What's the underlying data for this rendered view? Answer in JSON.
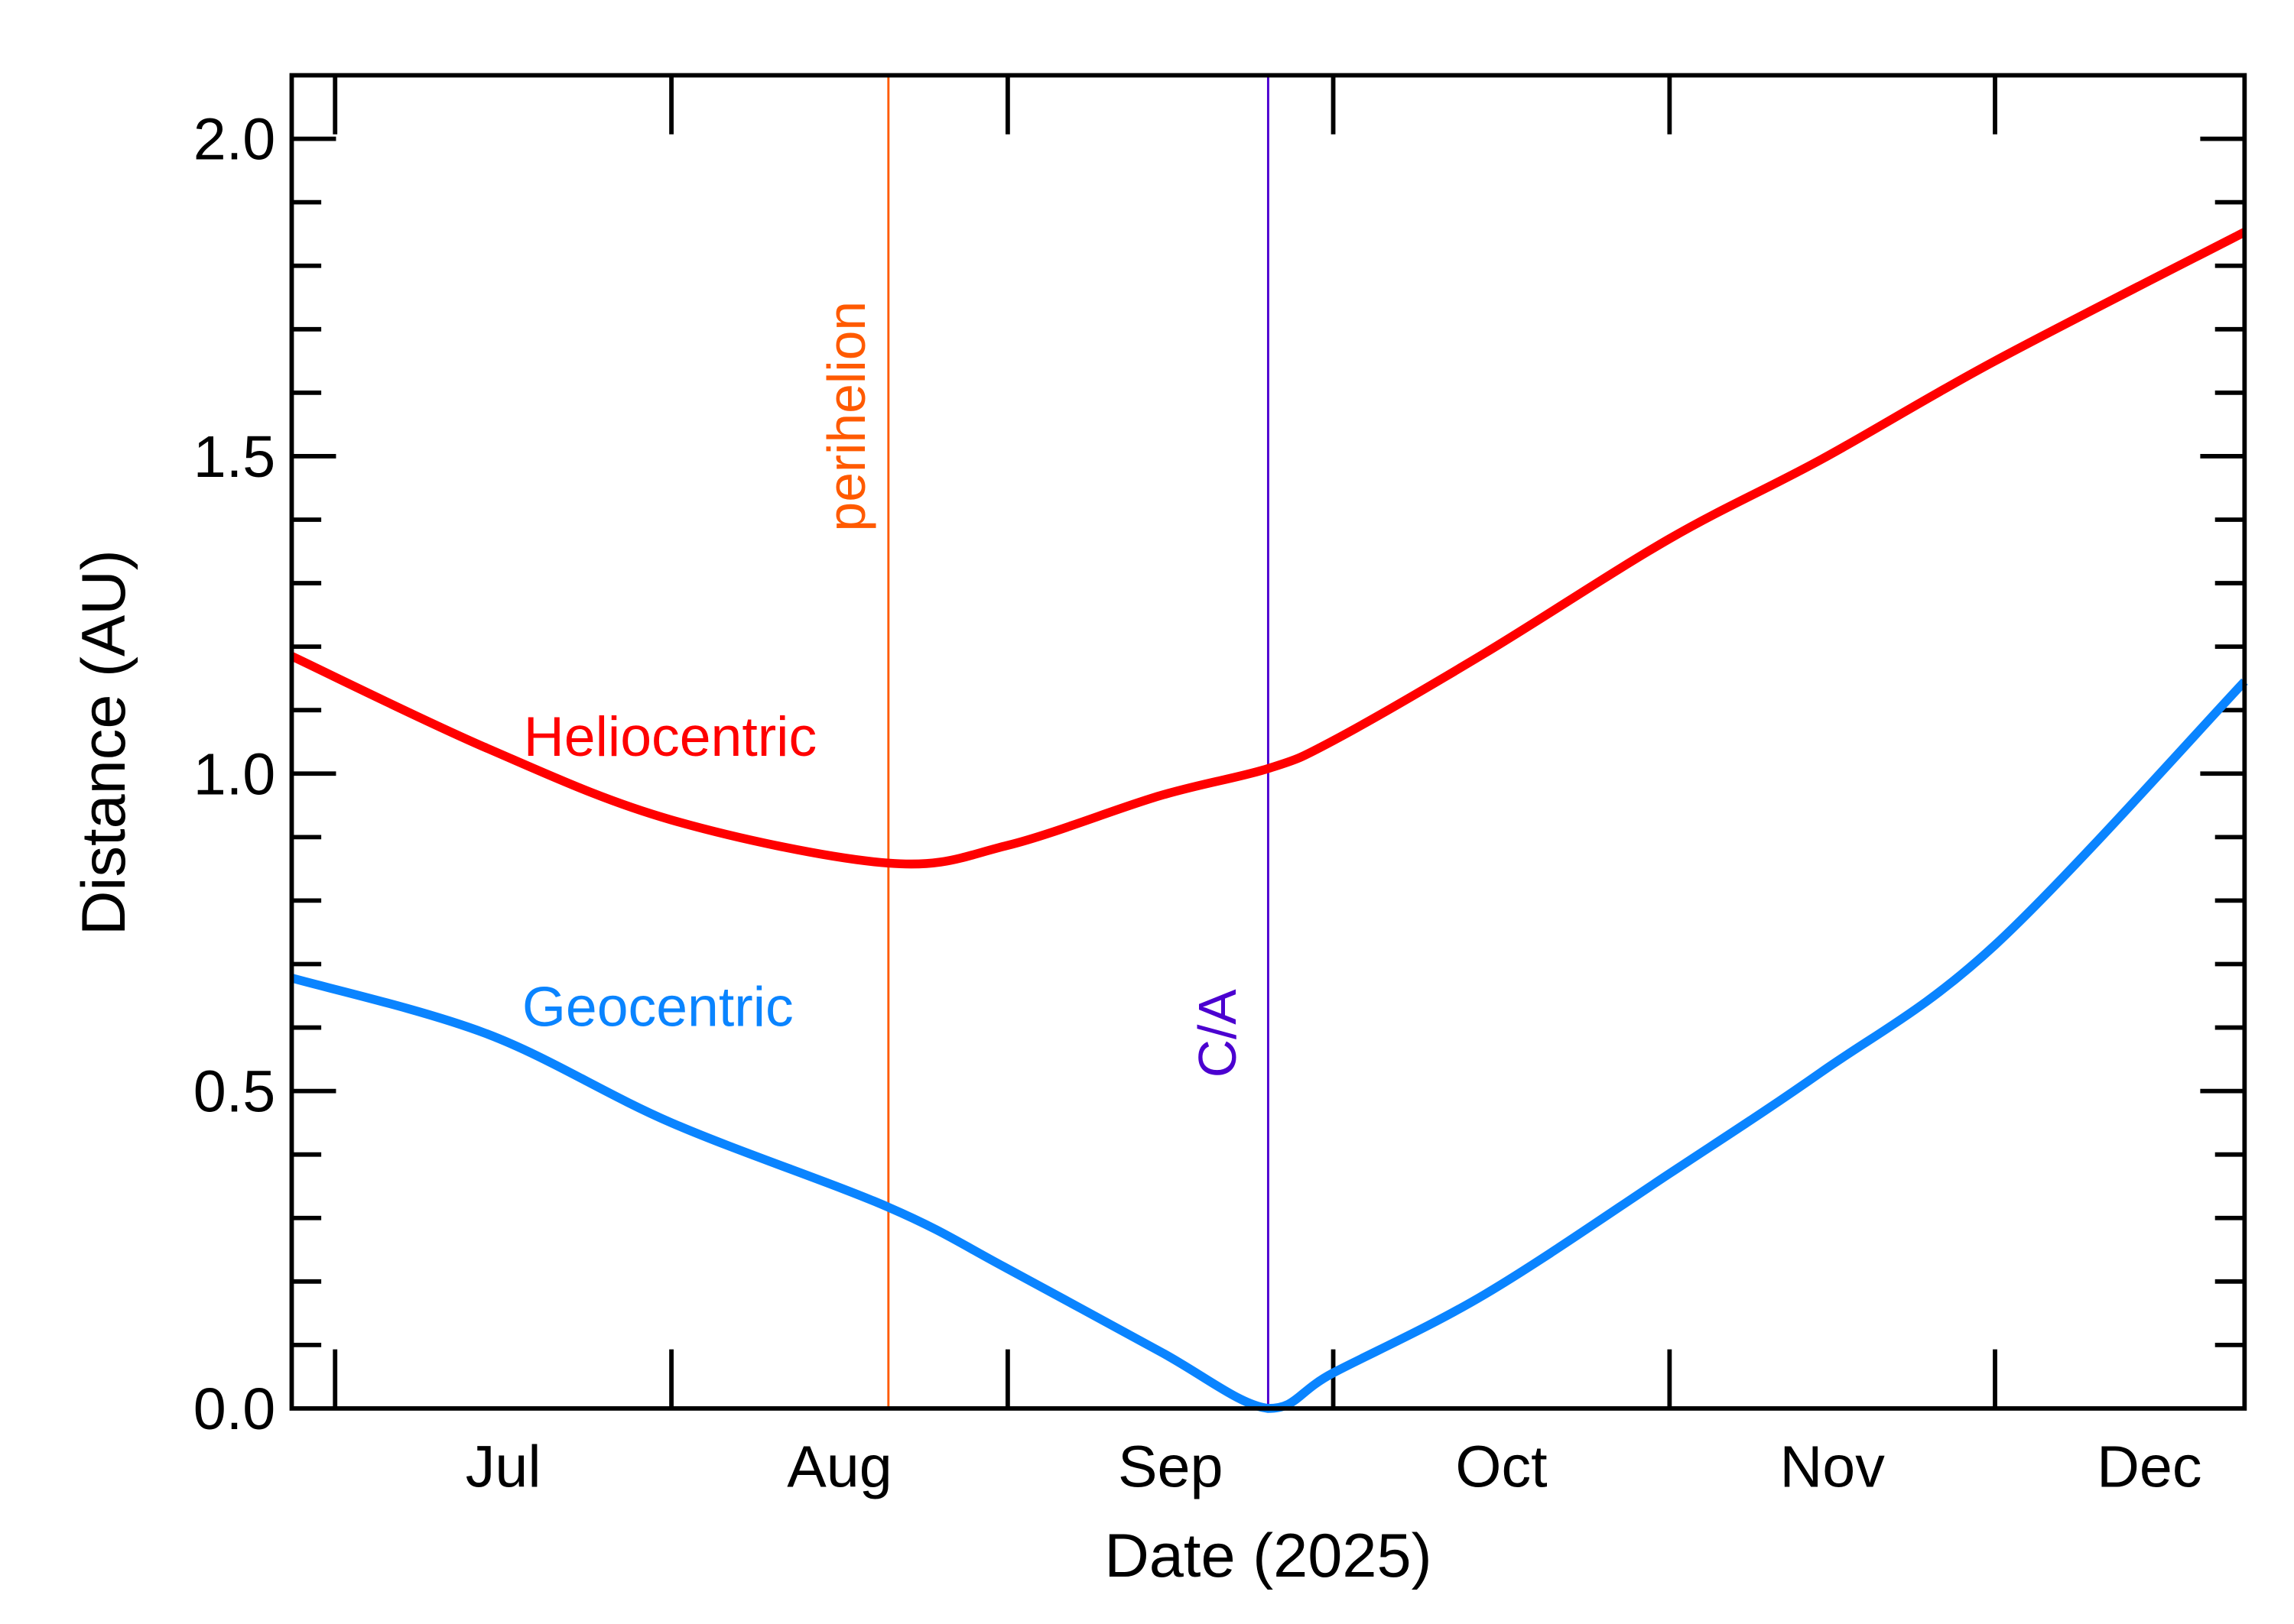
{
  "chart_data": {
    "type": "line",
    "xlabel": "Date (2025)",
    "ylabel": "Distance (AU)",
    "xlim": [
      "2025-06-27",
      "2025-12-24"
    ],
    "ylim": [
      0,
      2.1
    ],
    "x_ticks": [
      {
        "date": "2025-07-01",
        "label": "Jul"
      },
      {
        "date": "2025-08-01",
        "label": "Aug"
      },
      {
        "date": "2025-09-01",
        "label": "Sep"
      },
      {
        "date": "2025-10-01",
        "label": "Oct"
      },
      {
        "date": "2025-11-01",
        "label": "Nov"
      },
      {
        "date": "2025-12-01",
        "label": "Dec"
      }
    ],
    "y_ticks": [
      {
        "value": 0.0,
        "label": "0.0"
      },
      {
        "value": 0.5,
        "label": "0.5"
      },
      {
        "value": 1.0,
        "label": "1.0"
      },
      {
        "value": 1.5,
        "label": "1.5"
      },
      {
        "value": 2.0,
        "label": "2.0"
      }
    ],
    "grid": false,
    "x": [
      "2025-06-27",
      "2025-07-15",
      "2025-08-01",
      "2025-08-21",
      "2025-09-01",
      "2025-09-15",
      "2025-09-25",
      "2025-10-01",
      "2025-10-15",
      "2025-11-01",
      "2025-11-15",
      "2025-12-01",
      "2025-12-24"
    ],
    "series": [
      {
        "name": "Heliocentric",
        "color": "#ff0000",
        "values": [
          1.185,
          1.04,
          0.927,
          0.859,
          0.887,
          0.965,
          1.008,
          1.052,
          1.19,
          1.37,
          1.495,
          1.65,
          1.853
        ]
      },
      {
        "name": "Geocentric",
        "color": "#0a84ff",
        "values": [
          0.678,
          0.59,
          0.45,
          0.317,
          0.22,
          0.09,
          0.0,
          0.056,
          0.18,
          0.37,
          0.53,
          0.73,
          1.145
        ]
      }
    ],
    "annotations": [
      {
        "label": "perihelion",
        "date": "2025-08-21",
        "color": "#ff5a00"
      },
      {
        "label": "C/A",
        "date": "2025-09-25",
        "color": "#4b00d0"
      }
    ]
  }
}
